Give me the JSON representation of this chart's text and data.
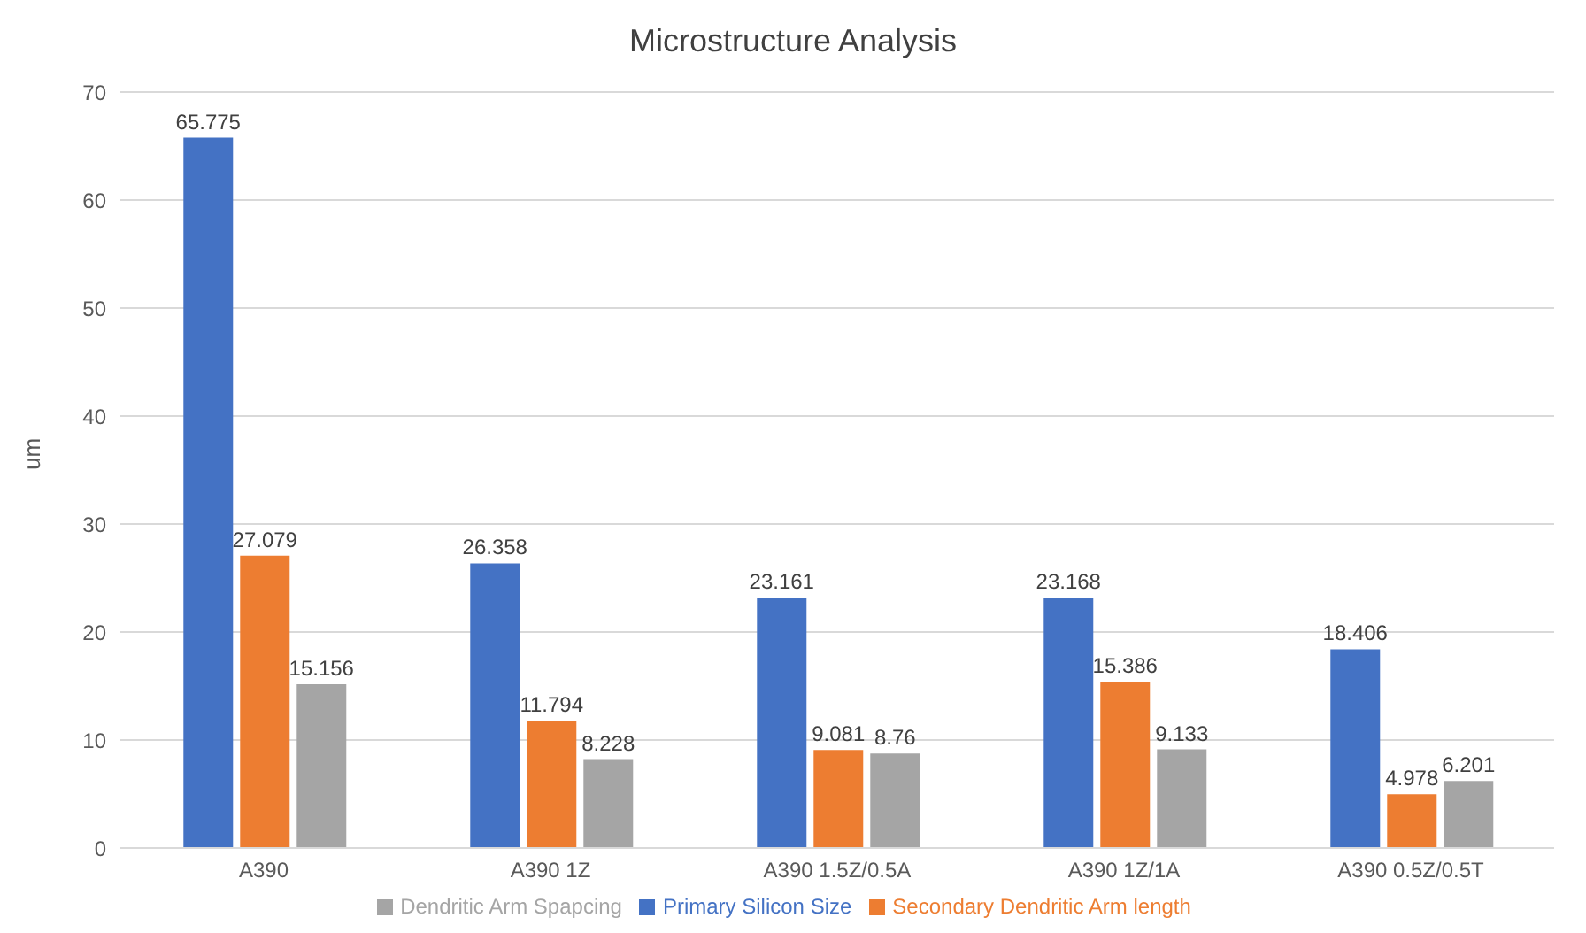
{
  "chart_data": {
    "type": "bar",
    "title": "Microstructure Analysis",
    "ylabel": "um",
    "categories": [
      "A390",
      "A390 1Z",
      "A390 1.5Z/0.5A",
      "A390 1Z/1A",
      "A390 0.5Z/0.5T"
    ],
    "series": [
      {
        "name": "Primary Silicon Size",
        "color": "#4472c4",
        "values": [
          65.775,
          26.358,
          23.161,
          23.168,
          18.406
        ]
      },
      {
        "name": "Secondary Dendritic Arm length",
        "color": "#ed7d31",
        "values": [
          27.079,
          11.794,
          9.081,
          15.386,
          4.978
        ]
      },
      {
        "name": "Dendritic Arm Spapcing",
        "color": "#a5a5a5",
        "values": [
          15.156,
          8.228,
          8.76,
          9.133,
          6.201
        ]
      }
    ],
    "ylim": [
      0,
      70
    ],
    "yticks": [
      0,
      10,
      20,
      30,
      40,
      50,
      60,
      70
    ],
    "grid": "y",
    "legend": "bottom",
    "data_labels": true
  }
}
